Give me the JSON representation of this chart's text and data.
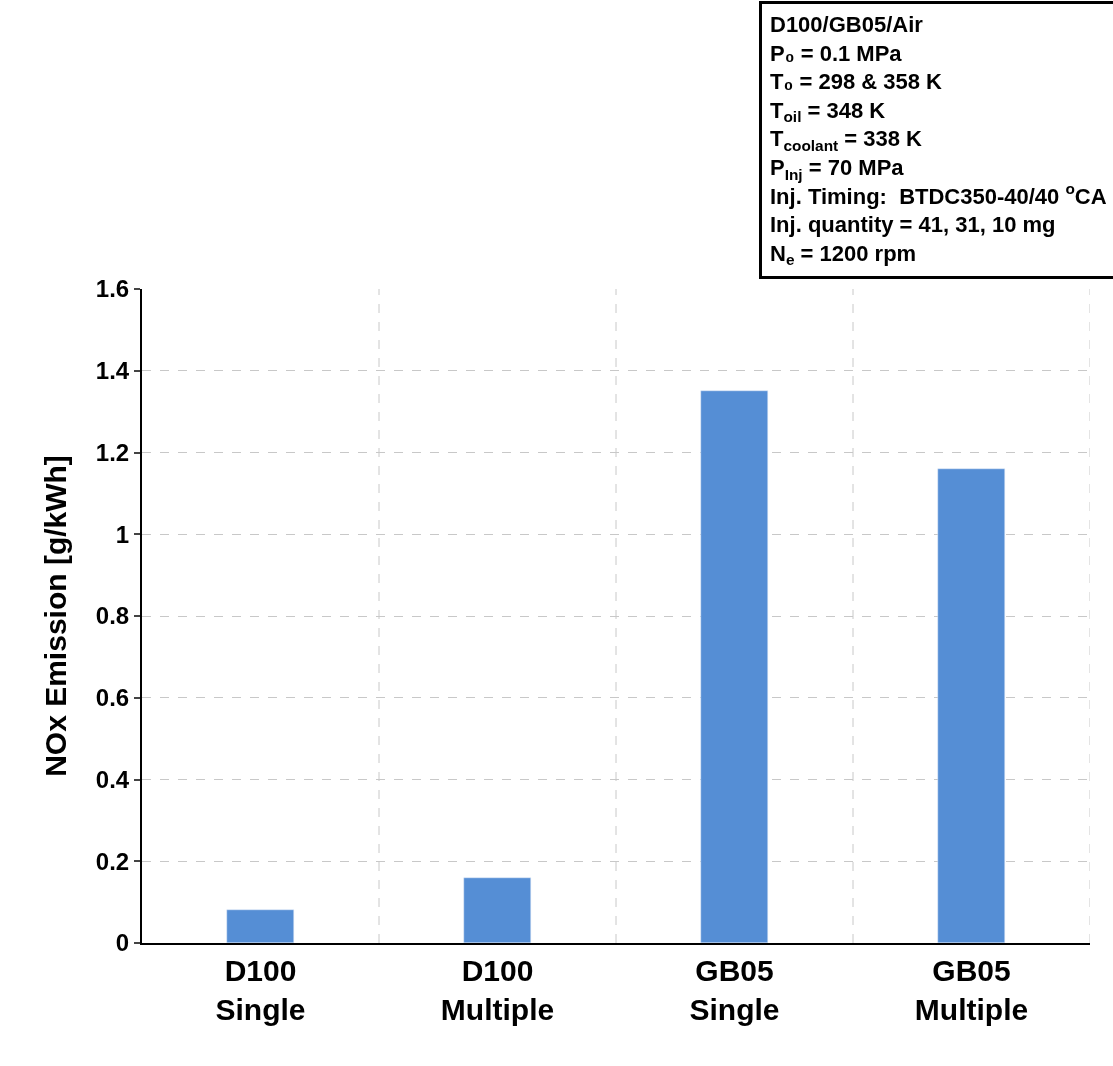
{
  "chart_data": {
    "type": "bar",
    "ylabel": "NOx Emission [g/kWh]",
    "categories": [
      "D100\nSingle",
      "D100\nMultiple",
      "GB05\nSingle",
      "GB05\nMultiple"
    ],
    "values": [
      0.08,
      0.16,
      1.35,
      1.16
    ],
    "color": "#558ed5",
    "ylim": [
      0,
      1.6
    ],
    "yticks": [
      {
        "value": 0,
        "label": "0"
      },
      0.2,
      0.4,
      0.6,
      0.8,
      {
        "value": 1,
        "label": "1"
      },
      1.2,
      1.4,
      1.6
    ],
    "grid": true,
    "annotations": [
      "D100/GB05/Air",
      "P₀ = 0.1 MPa",
      "T₀ = 298 & 358 K",
      "T$_{oil}$ = 348 K",
      "T$_{coolant}$ = 338 K",
      "P$_{Inj}$ = 70 MPa",
      "Inj. Timing:  BTDC350-40/40 $^{o}$CA",
      "Inj. quantity = 41, 31, 10 mg",
      "N$_{e}$ = 1200 rpm"
    ]
  }
}
